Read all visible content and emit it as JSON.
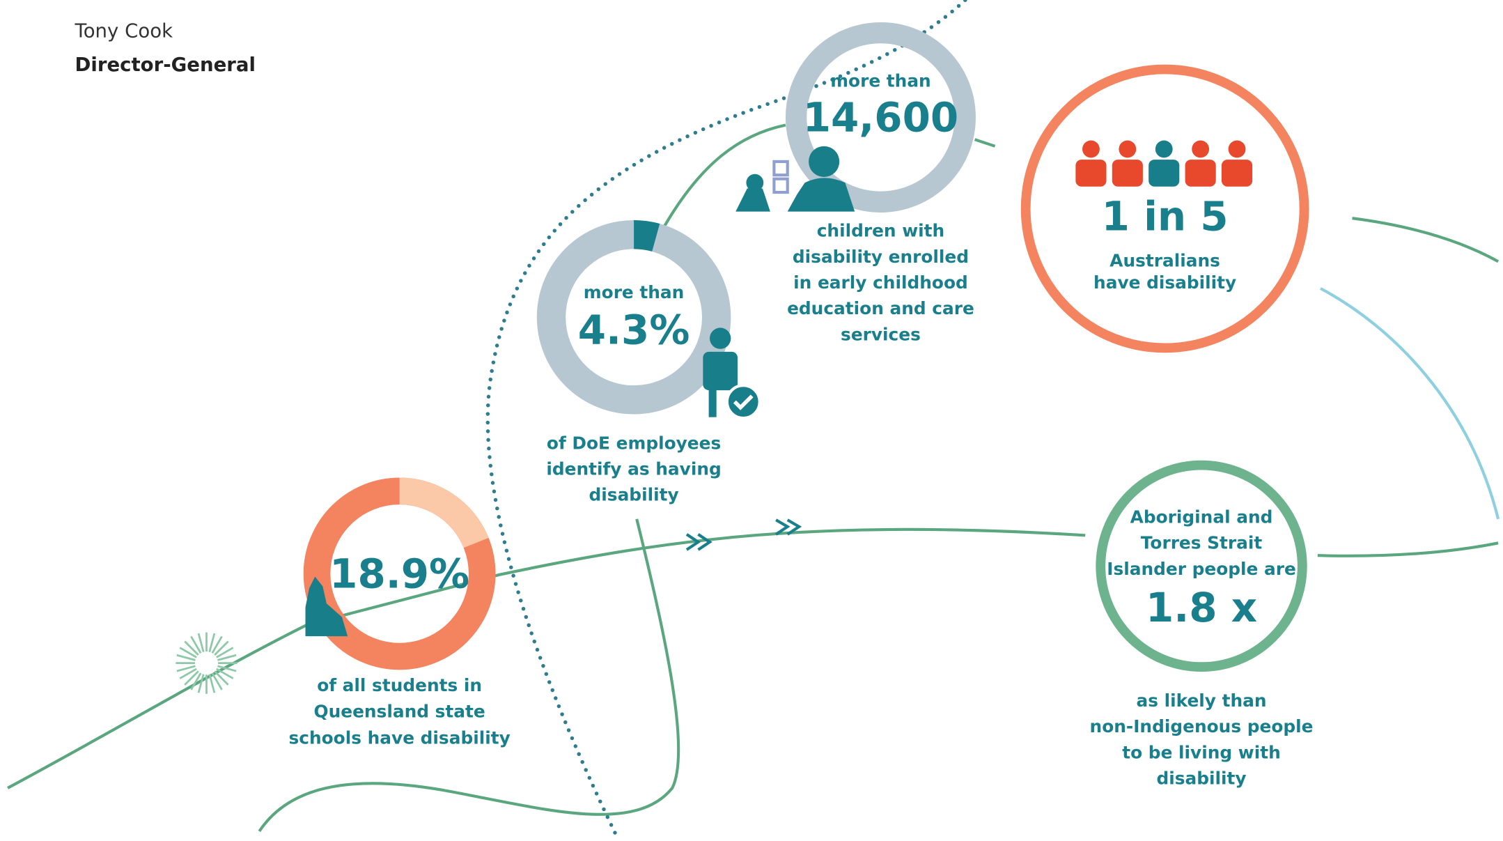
{
  "header": {
    "name": "Tony Cook",
    "role": "Director-General"
  },
  "stats": [
    {
      "prefix": "more than",
      "label": "14,600",
      "caption": [
        "children with",
        "disability enrolled",
        "in early childhood",
        "education and care",
        "services"
      ]
    },
    {
      "label": "1 in 5",
      "caption": [
        "Australians",
        "have disability"
      ]
    },
    {
      "prefix": "more than",
      "value": 4.3,
      "label": "4.3%",
      "caption": [
        "of DoE employees",
        "identify as having",
        "disability"
      ]
    },
    {
      "value": 18.9,
      "label": "18.9%",
      "caption": [
        "of all students in",
        "Queensland state",
        "schools have disability"
      ]
    },
    {
      "intro": [
        "Aboriginal and",
        "Torres Strait",
        "Islander people are"
      ],
      "label": "1.8 x",
      "caption": [
        "as likely than",
        "non-Indigenous people",
        "to be living with",
        "disability"
      ]
    }
  ]
}
